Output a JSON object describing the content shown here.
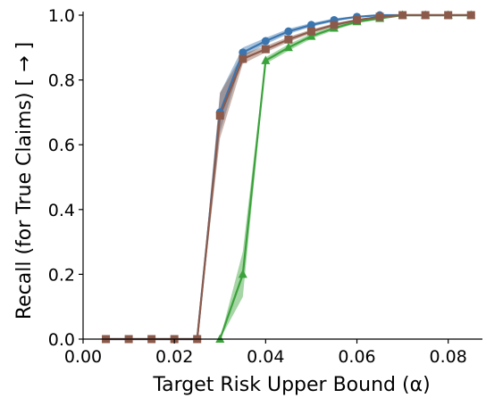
{
  "chart_data": {
    "type": "line",
    "title": "",
    "xlabel": "Target Risk Upper Bound (α)",
    "ylabel": "Recall (for True Claims) [ → ]",
    "xlim": [
      0.0,
      0.0875
    ],
    "ylim": [
      0.0,
      1.0
    ],
    "xticks": [
      "0.00",
      "0.02",
      "0.04",
      "0.06",
      "0.08"
    ],
    "yticks": [
      "0.0",
      "0.2",
      "0.4",
      "0.6",
      "0.8",
      "1.0"
    ],
    "grid": false,
    "legend": "none",
    "series": [
      {
        "color": "#3a75b0",
        "marker": "circle",
        "x": [
          0.005,
          0.01,
          0.015,
          0.02,
          0.025,
          0.03,
          0.035,
          0.04,
          0.045,
          0.05,
          0.055,
          0.06,
          0.065,
          0.07,
          0.075,
          0.08,
          0.085
        ],
        "values": [
          0.0,
          0.0,
          0.0,
          0.0,
          0.0,
          0.7,
          0.885,
          0.92,
          0.95,
          0.97,
          0.985,
          0.995,
          1.0,
          1.0,
          1.0,
          1.0,
          1.0
        ],
        "band": [
          0.0,
          0.0,
          0.0,
          0.0,
          0.0,
          0.06,
          0.015,
          0.01,
          0.008,
          0.006,
          0.005,
          0.003,
          0.0,
          0.0,
          0.0,
          0.0,
          0.0
        ]
      },
      {
        "color": "#3aa23a",
        "marker": "triangle",
        "x": [
          0.03,
          0.035,
          0.04,
          0.045,
          0.05,
          0.055,
          0.06,
          0.065,
          0.07,
          0.075,
          0.08,
          0.085
        ],
        "values": [
          0.0,
          0.2,
          0.86,
          0.9,
          0.935,
          0.96,
          0.98,
          0.99,
          1.0,
          1.0,
          1.0,
          1.0
        ],
        "band": [
          0.0,
          0.07,
          0.01,
          0.01,
          0.008,
          0.006,
          0.005,
          0.003,
          0.0,
          0.0,
          0.0,
          0.0
        ]
      },
      {
        "color": "#8c5a4a",
        "marker": "square",
        "x": [
          0.005,
          0.01,
          0.015,
          0.02,
          0.025,
          0.03,
          0.035,
          0.04,
          0.045,
          0.05,
          0.055,
          0.06,
          0.065,
          0.07,
          0.075,
          0.08,
          0.085
        ],
        "values": [
          0.0,
          0.0,
          0.0,
          0.0,
          0.0,
          0.69,
          0.865,
          0.895,
          0.925,
          0.95,
          0.97,
          0.985,
          0.995,
          1.0,
          1.0,
          1.0,
          1.0
        ],
        "band": [
          0.0,
          0.0,
          0.0,
          0.0,
          0.0,
          0.07,
          0.015,
          0.01,
          0.008,
          0.006,
          0.005,
          0.003,
          0.002,
          0.0,
          0.0,
          0.0,
          0.0
        ]
      }
    ]
  }
}
